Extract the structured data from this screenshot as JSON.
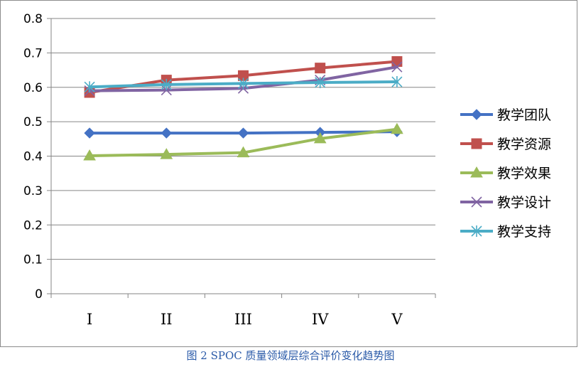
{
  "caption": "图 2 SPOC 质量领域层综合评价变化趋势图",
  "chart_data": {
    "type": "line",
    "categories": [
      "I",
      "II",
      "III",
      "IV",
      "V"
    ],
    "ylim": [
      0,
      0.8
    ],
    "yticks": [
      "0",
      "0.1",
      "0.2",
      "0.3",
      "0.4",
      "0.5",
      "0.6",
      "0.7",
      "0.8"
    ],
    "grid": "horizontal",
    "legend_position": "right",
    "series": [
      {
        "name": "教学团队",
        "color": "#4472c4",
        "marker": "diamond",
        "values": [
          0.467,
          0.467,
          0.467,
          0.469,
          0.471
        ]
      },
      {
        "name": "教学资源",
        "color": "#c0504d",
        "marker": "square",
        "values": [
          0.585,
          0.621,
          0.634,
          0.656,
          0.675
        ]
      },
      {
        "name": "教学效果",
        "color": "#9bbb59",
        "marker": "triangle",
        "values": [
          0.401,
          0.405,
          0.41,
          0.451,
          0.478
        ]
      },
      {
        "name": "教学设计",
        "color": "#8064a2",
        "marker": "x",
        "values": [
          0.59,
          0.592,
          0.597,
          0.621,
          0.659
        ]
      },
      {
        "name": "教学支持",
        "color": "#4bacc6",
        "marker": "asterisk",
        "values": [
          0.601,
          0.608,
          0.611,
          0.614,
          0.616
        ]
      }
    ]
  }
}
